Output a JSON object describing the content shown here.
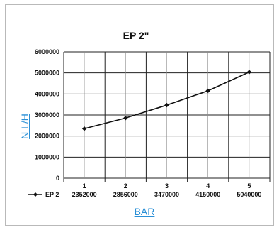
{
  "chart_data": {
    "type": "line",
    "title": "EP 2\"",
    "xlabel": "BAR",
    "ylabel": "N L/H",
    "categories": [
      "1",
      "2",
      "3",
      "4",
      "5"
    ],
    "series": [
      {
        "name": "EP 2",
        "values": [
          2352000,
          2856000,
          3470000,
          4150000,
          5040000
        ],
        "value_labels": [
          "2352000",
          "2856000",
          "3470000",
          "4150000",
          "5040000"
        ],
        "color": "#111111",
        "marker": "diamond"
      }
    ],
    "ylim": [
      0,
      6000000
    ],
    "yticks": [
      0,
      1000000,
      2000000,
      3000000,
      4000000,
      5000000,
      6000000
    ],
    "ytick_labels": [
      "0",
      "1000000",
      "2000000",
      "3000000",
      "4000000",
      "5000000",
      "6000000"
    ],
    "grid": true,
    "legend": "data-table-below-chart",
    "axis_label_color": "#2a8fd6",
    "gridline_color": "#222222"
  }
}
